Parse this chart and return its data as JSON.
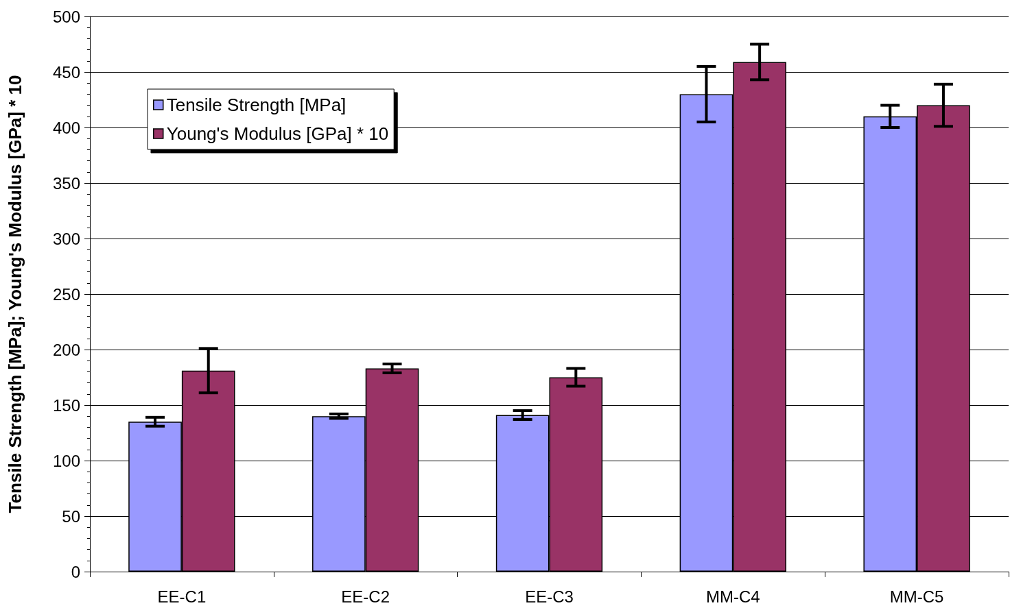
{
  "chart_data": {
    "type": "bar",
    "ylabel": "Tensile Strength [MPa]; Young's Modulus [GPa] * 10",
    "categories": [
      "EE-C1",
      "EE-C2",
      "EE-C3",
      "MM-C4",
      "MM-C5"
    ],
    "series": [
      {
        "name": "Tensile Strength [MPa]",
        "color": "#9999ff",
        "values": [
          135,
          140,
          141,
          430,
          410
        ],
        "errors": [
          4,
          2,
          4,
          25,
          10
        ]
      },
      {
        "name": "Young's Modulus [GPa] * 10",
        "color": "#993366",
        "values": [
          181,
          183,
          175,
          459,
          420
        ],
        "errors": [
          20,
          4,
          8,
          16,
          19
        ]
      }
    ],
    "ylim": [
      0,
      500
    ],
    "yticks": [
      0,
      50,
      100,
      150,
      200,
      250,
      300,
      350,
      400,
      450,
      500
    ],
    "grid": "y",
    "legend": "top left"
  }
}
